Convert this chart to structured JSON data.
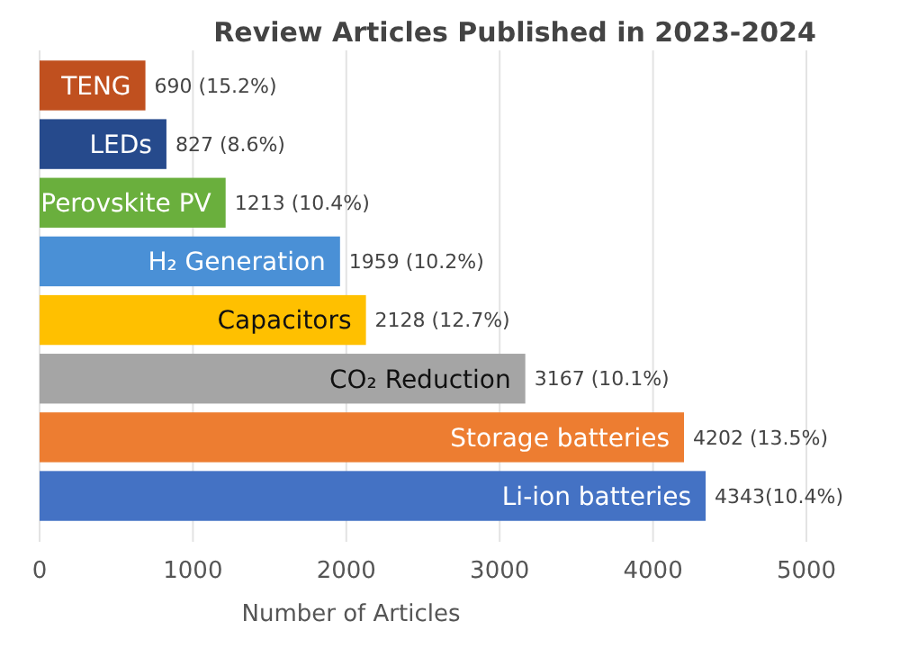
{
  "chart_data": {
    "type": "bar",
    "orientation": "horizontal",
    "title": "Review Articles Published in 2023-2024",
    "xlabel": "Number of Articles",
    "categories": [
      "TENG",
      "LEDs",
      "Perovskite PV",
      "H₂ Generation",
      "Capacitors",
      "CO₂ Reduction",
      "Storage batteries",
      "Li-ion batteries"
    ],
    "values": [
      690,
      827,
      1213,
      1959,
      2128,
      3167,
      4202,
      4343
    ],
    "colors": [
      "#c0501f",
      "#264a8c",
      "#6aaf3d",
      "#4a90d6",
      "#ffc000",
      "#a5a5a5",
      "#ed7d31",
      "#4472c4"
    ],
    "value_labels": [
      "690 (15.2%)",
      "827 (8.6%)",
      "1213 (10.4%)",
      "1959 (10.2%)",
      "2128 (12.7%)",
      "3167 (10.1%)",
      "4202 (13.5%)",
      "4343(10.4%)"
    ],
    "xlim": [
      0,
      5000
    ],
    "xticks": [
      0,
      1000,
      2000,
      3000,
      4000,
      5000
    ],
    "grid": "x"
  }
}
